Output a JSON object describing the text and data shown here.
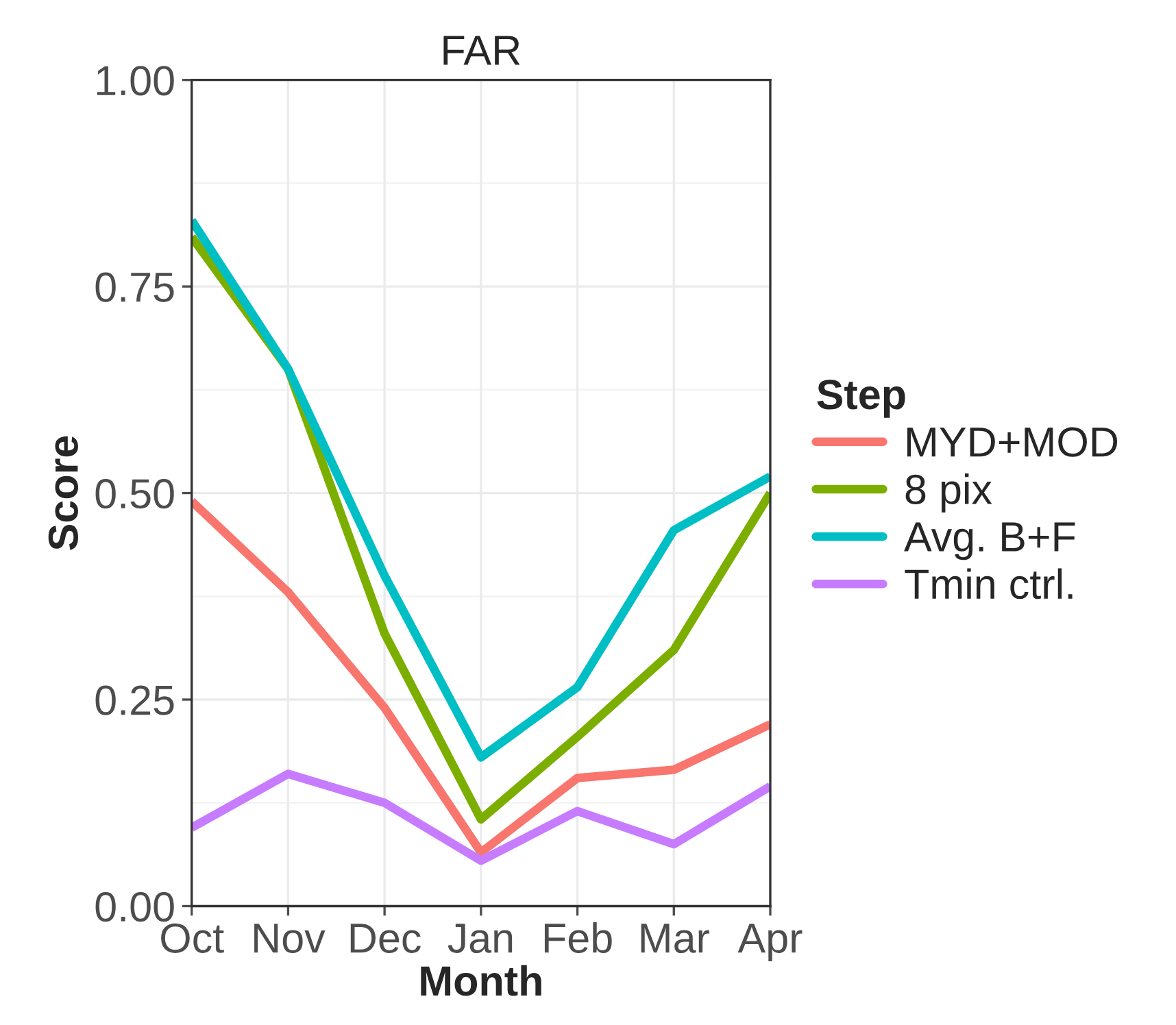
{
  "chart_data": {
    "type": "line",
    "title": "FAR",
    "xlabel": "Month",
    "ylabel": "Score",
    "legend_title": "Step",
    "categories": [
      "Oct",
      "Nov",
      "Dec",
      "Jan",
      "Feb",
      "Mar",
      "Apr"
    ],
    "series": [
      {
        "name": "MYD+MOD",
        "color": "#f8766d",
        "values": [
          0.49,
          0.38,
          0.24,
          0.065,
          0.155,
          0.165,
          0.22
        ]
      },
      {
        "name": "8 pix",
        "color": "#7cae00",
        "values": [
          0.81,
          0.65,
          0.33,
          0.105,
          0.205,
          0.31,
          0.5
        ]
      },
      {
        "name": "Avg. B+F",
        "color": "#00bfc4",
        "values": [
          0.83,
          0.65,
          0.4,
          0.18,
          0.265,
          0.455,
          0.52
        ]
      },
      {
        "name": "Tmin ctrl.",
        "color": "#c77cff",
        "values": [
          0.095,
          0.16,
          0.125,
          0.055,
          0.115,
          0.075,
          0.145
        ]
      }
    ],
    "ylim": [
      0,
      1
    ],
    "yticks": [
      {
        "value": 0,
        "label": "0.00"
      },
      {
        "value": 0.25,
        "label": "0.25"
      },
      {
        "value": 0.5,
        "label": "0.50"
      },
      {
        "value": 0.75,
        "label": "0.75"
      },
      {
        "value": 1,
        "label": "1.00"
      }
    ],
    "grid": true,
    "legend": "right"
  }
}
